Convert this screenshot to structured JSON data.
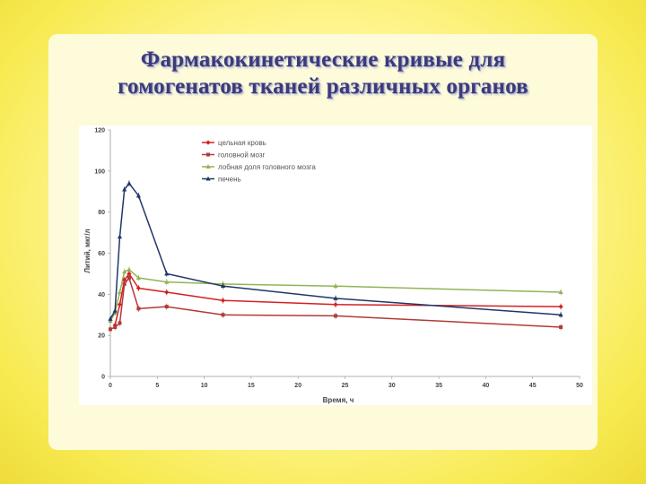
{
  "title": {
    "line1": "Фармакокинетические кривые для",
    "line2": "гомогенатов тканей различных органов"
  },
  "chart_data": {
    "type": "line",
    "xlabel": "Время, ч",
    "ylabel": "Литий, мкг/л",
    "xlim": [
      0,
      50
    ],
    "ylim": [
      0,
      120
    ],
    "xticks": [
      0,
      5,
      10,
      15,
      20,
      25,
      30,
      35,
      40,
      45,
      50
    ],
    "yticks": [
      0,
      20,
      40,
      60,
      80,
      100,
      120
    ],
    "grid": false,
    "legend": "top-center",
    "series": [
      {
        "name": "цельная кровь",
        "color": "#d42020",
        "marker": "diamond",
        "points": [
          [
            0.5,
            25
          ],
          [
            1,
            35
          ],
          [
            1.5,
            47
          ],
          [
            2,
            50
          ],
          [
            3,
            43
          ],
          [
            6,
            41
          ],
          [
            12,
            37
          ],
          [
            24,
            35
          ],
          [
            48,
            34
          ]
        ]
      },
      {
        "name": "головной мозг",
        "color": "#b23a3a",
        "marker": "square",
        "points": [
          [
            0,
            23
          ],
          [
            0.5,
            24
          ],
          [
            1,
            26
          ],
          [
            1.5,
            45
          ],
          [
            2,
            48
          ],
          [
            3,
            33
          ],
          [
            6,
            34
          ],
          [
            12,
            30
          ],
          [
            24,
            29.5
          ],
          [
            48,
            24
          ]
        ]
      },
      {
        "name": "лобная доля головного мозга",
        "color": "#94b355",
        "marker": "triangle",
        "points": [
          [
            0,
            27
          ],
          [
            0.5,
            31
          ],
          [
            1,
            41
          ],
          [
            1.5,
            51
          ],
          [
            2,
            52
          ],
          [
            3,
            48
          ],
          [
            6,
            46
          ],
          [
            12,
            45
          ],
          [
            24,
            44
          ],
          [
            48,
            41
          ]
        ]
      },
      {
        "name": "печень",
        "color": "#1f3868",
        "marker": "triangle",
        "points": [
          [
            0,
            28
          ],
          [
            0.5,
            32
          ],
          [
            1,
            68
          ],
          [
            1.5,
            91
          ],
          [
            2,
            94
          ],
          [
            3,
            88
          ],
          [
            6,
            50
          ],
          [
            12,
            44
          ],
          [
            24,
            38
          ],
          [
            48,
            30
          ]
        ]
      }
    ]
  }
}
